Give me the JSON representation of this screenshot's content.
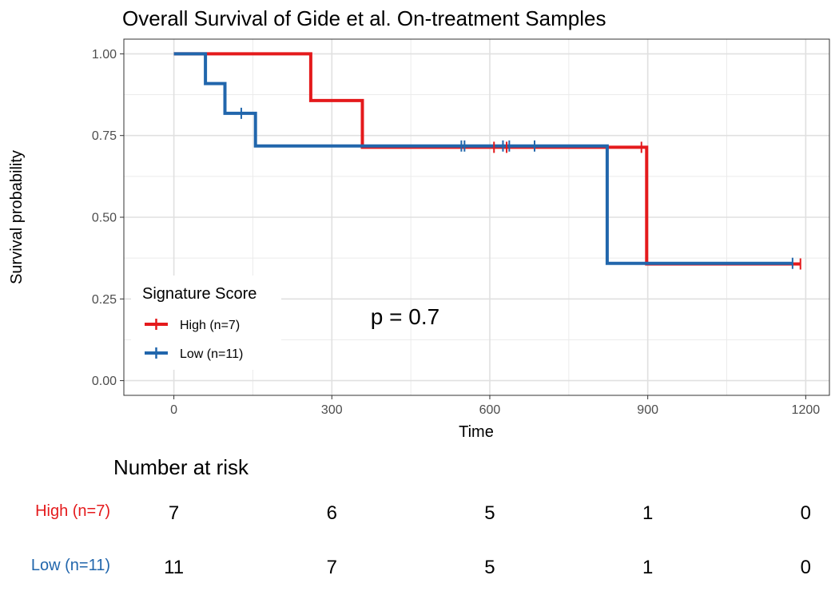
{
  "chart_data": {
    "type": "line",
    "subtype": "kaplan-meier",
    "title": "Overall Survival of Gide et al. On-treatment Samples",
    "xlabel": "Time",
    "ylabel": "Survival probability",
    "xlim": [
      -95,
      1245
    ],
    "ylim": [
      -0.045,
      1.045
    ],
    "x_ticks": [
      0,
      300,
      600,
      900,
      1200
    ],
    "x_tick_labels": [
      "0",
      "300",
      "600",
      "900",
      "1200"
    ],
    "y_ticks": [
      0,
      0.25,
      0.5,
      0.75,
      1.0
    ],
    "y_tick_labels": [
      "0.00",
      "0.25",
      "0.50",
      "0.75",
      "1.00"
    ],
    "grid": true,
    "legend": {
      "title": "Signature Score",
      "placement": "bottom-left"
    },
    "annotation": "p = 0.7",
    "series": [
      {
        "name": "High (n=7)",
        "color": "#E41A1C",
        "steps": [
          [
            0,
            1.0
          ],
          [
            260,
            1.0
          ],
          [
            260,
            0.857
          ],
          [
            358,
            0.857
          ],
          [
            358,
            0.714
          ],
          [
            898,
            0.714
          ],
          [
            898,
            0.357
          ],
          [
            1190,
            0.357
          ]
        ],
        "censor_x": [
          608,
          632,
          888,
          1190
        ]
      },
      {
        "name": "Low (n=11)",
        "color": "#2166AC",
        "steps": [
          [
            0,
            1.0
          ],
          [
            60,
            1.0
          ],
          [
            60,
            0.909
          ],
          [
            97,
            0.909
          ],
          [
            97,
            0.818
          ],
          [
            155,
            0.818
          ],
          [
            155,
            0.718
          ],
          [
            823,
            0.718
          ],
          [
            823,
            0.359
          ],
          [
            1175,
            0.359
          ]
        ],
        "censor_x": [
          128,
          546,
          552,
          625,
          637,
          685,
          1175
        ]
      }
    ]
  },
  "risk_table": {
    "title": "Number at risk",
    "times": [
      0,
      300,
      600,
      900,
      1200
    ],
    "rows": [
      {
        "label": "High (n=7)",
        "color": "#E41A1C",
        "values": [
          "7",
          "6",
          "5",
          "1",
          "0"
        ]
      },
      {
        "label": "Low (n=11)",
        "color": "#2166AC",
        "values": [
          "11",
          "7",
          "5",
          "1",
          "0"
        ]
      }
    ]
  }
}
